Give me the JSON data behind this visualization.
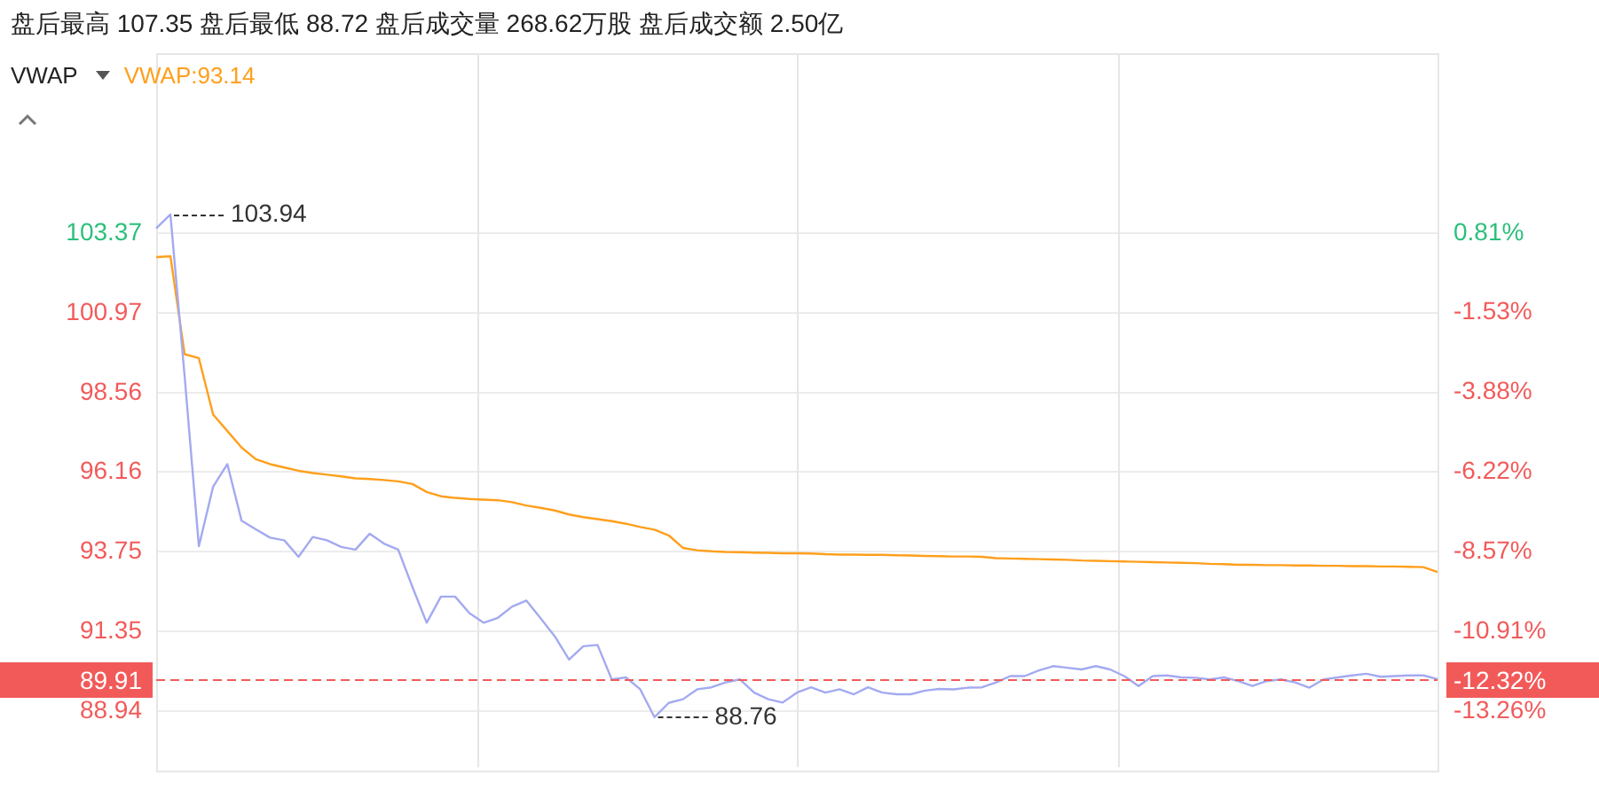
{
  "chart_data": {
    "type": "line",
    "title": "盘后最高 107.35 盘后最低 88.72 盘后成交量 268.62万股 盘后成交额 2.50亿",
    "subtitle": "VWAP",
    "categories": [
      null,
      null,
      null,
      null,
      null,
      null,
      null,
      null,
      null,
      null,
      null,
      null,
      null,
      null,
      null,
      null,
      null,
      null,
      null,
      null,
      null,
      null,
      null,
      null,
      null,
      null,
      null,
      null,
      null,
      null,
      null,
      null,
      null,
      null,
      null,
      null,
      null,
      null,
      null,
      null,
      null,
      null,
      null,
      null,
      null,
      null,
      null,
      null,
      null,
      null,
      null,
      null,
      null,
      null,
      null,
      null,
      null,
      null,
      null,
      null,
      null,
      null,
      null,
      null,
      null,
      null,
      null,
      null,
      null,
      null,
      null,
      null,
      null,
      null,
      null,
      null,
      null,
      null,
      null,
      null,
      null,
      null,
      null,
      null,
      null,
      null,
      null,
      null,
      null,
      null,
      null
    ],
    "series": [
      {
        "color": "#a3aaf0",
        "values": [
          103.52,
          103.94,
          99.05,
          93.92,
          95.72,
          96.4,
          94.69,
          94.43,
          94.18,
          94.1,
          93.6,
          94.2,
          94.1,
          93.9,
          93.82,
          94.3,
          94.0,
          93.82,
          92.69,
          91.61,
          92.4,
          92.4,
          91.9,
          91.61,
          91.76,
          92.1,
          92.28,
          91.75,
          91.2,
          90.5,
          90.9,
          90.94,
          89.9,
          89.96,
          89.6,
          88.76,
          89.19,
          89.3,
          89.6,
          89.66,
          89.81,
          89.9,
          89.5,
          89.3,
          89.2,
          89.5,
          89.66,
          89.5,
          89.6,
          89.45,
          89.66,
          89.5,
          89.45,
          89.45,
          89.56,
          89.61,
          89.6,
          89.65,
          89.66,
          89.81,
          90.0,
          90.0,
          90.17,
          90.3,
          90.25,
          90.2,
          90.3,
          90.2,
          90.0,
          89.7,
          90.0,
          90.02,
          89.96,
          89.95,
          89.9,
          89.96,
          89.85,
          89.7,
          89.85,
          89.9,
          89.81,
          89.65,
          89.9,
          89.96,
          90.02,
          90.07,
          89.98,
          90.0,
          90.02,
          90.02,
          89.91
        ]
      },
      {
        "color": "#ff9f1c",
        "values": [
          102.65,
          102.68,
          99.72,
          99.6,
          97.9,
          97.4,
          96.9,
          96.55,
          96.4,
          96.3,
          96.2,
          96.13,
          96.08,
          96.03,
          95.97,
          95.95,
          95.92,
          95.88,
          95.8,
          95.56,
          95.43,
          95.38,
          95.35,
          95.33,
          95.31,
          95.25,
          95.15,
          95.08,
          95.0,
          94.88,
          94.8,
          94.74,
          94.68,
          94.6,
          94.5,
          94.42,
          94.25,
          93.87,
          93.8,
          93.77,
          93.75,
          93.74,
          93.73,
          93.72,
          93.71,
          93.71,
          93.7,
          93.68,
          93.67,
          93.67,
          93.66,
          93.66,
          93.65,
          93.64,
          93.63,
          93.62,
          93.61,
          93.61,
          93.6,
          93.56,
          93.55,
          93.54,
          93.53,
          93.52,
          93.51,
          93.49,
          93.48,
          93.47,
          93.46,
          93.45,
          93.44,
          93.43,
          93.42,
          93.41,
          93.39,
          93.38,
          93.36,
          93.36,
          93.35,
          93.35,
          93.34,
          93.34,
          93.33,
          93.33,
          93.32,
          93.32,
          93.31,
          93.31,
          93.3,
          93.29,
          93.14
        ]
      }
    ],
    "ylim": [
      87.25,
      108.81
    ],
    "yticks": [
      88.94,
      91.35,
      93.75,
      96.16,
      98.56,
      100.97,
      103.37
    ],
    "y2lim": [
      -14.91,
      6.11
    ],
    "y2ticks": [
      {
        "value": -13.26,
        "label": "-13.26%"
      },
      {
        "value": -10.91,
        "label": "-10.91%"
      },
      {
        "value": -8.57,
        "label": "-8.57%"
      },
      {
        "value": -6.22,
        "label": "-6.22%"
      },
      {
        "value": -3.88,
        "label": "-3.88%"
      },
      {
        "value": -1.53,
        "label": "-1.53%"
      },
      {
        "value": 0.81,
        "label": "0.81%"
      }
    ],
    "ref_lines": [
      {
        "axis": "y",
        "value": 89.91,
        "label": "89.91",
        "color": "#f25a5a",
        "line_style": "dashed"
      }
    ],
    "annotations": [
      "103.94",
      "88.76",
      "VWAP:93.14",
      "-12.32%"
    ],
    "grid": true,
    "legend": false,
    "marker": "none",
    "line_style": "solid"
  }
}
